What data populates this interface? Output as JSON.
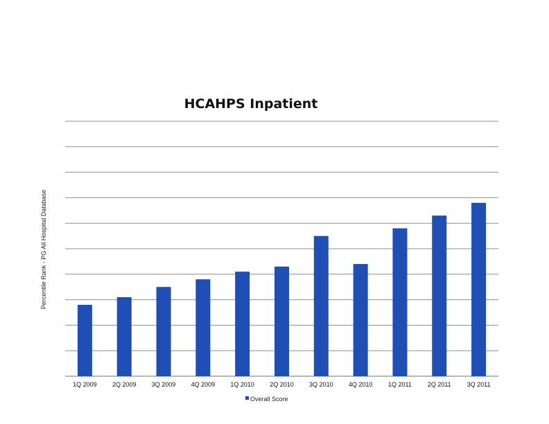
{
  "chart_data": {
    "type": "bar",
    "title": "HCAHPS Inpatient",
    "xlabel": "",
    "ylabel": "Percentile Rank - PG All Hospital Database",
    "categories": [
      "1Q 2009",
      "2Q 2009",
      "3Q 2009",
      "4Q 2009",
      "1Q 2010",
      "2Q 2010",
      "3Q 2010",
      "4Q 2010",
      "1Q 2011",
      "2Q 2011",
      "3Q 2011"
    ],
    "series": [
      {
        "name": "Overall Score",
        "values": [
          28,
          31,
          35,
          38,
          41,
          43,
          55,
          44,
          58,
          63,
          68
        ],
        "color": "#1F4FB5"
      }
    ],
    "ylim": [
      0,
      100
    ],
    "grid": true,
    "legend": "bottom-center"
  }
}
